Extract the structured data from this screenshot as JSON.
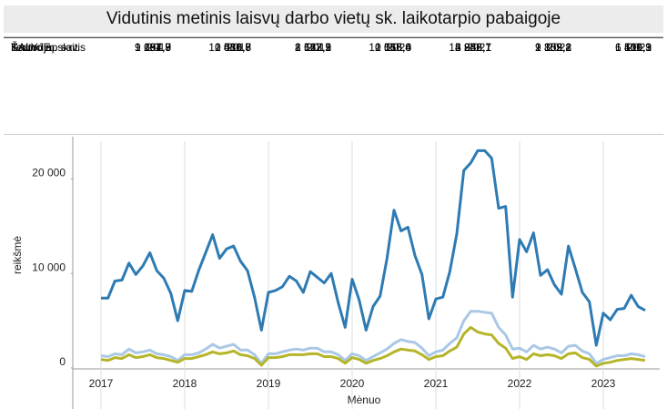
{
  "header": {
    "title": "Vidutinis metinis laisvų darbo vietų sk. laikotarpio pabaigoje"
  },
  "table": {
    "header": [
      "Teritorija",
      "2017",
      "2018",
      "2019",
      "2020",
      "2021",
      "2022",
      "2023"
    ],
    "rows": [
      [
        "ŠALYJE",
        "9 264,8",
        "10 430,6",
        "8 527,5",
        "10 015,4",
        "15 952,1",
        "9 859,2",
        "6 400,3"
      ],
      [
        "Kauno apskritis",
        "1 691,9",
        "2 081,8",
        "2 163,2",
        "2 163,8",
        "4 236,7",
        "2 103,8",
        "1 519,9"
      ],
      [
        "Kauno m. sav.",
        "1 187,9",
        "1 516,7",
        "1 612,1",
        "1 556,4",
        "2 846,1",
        "1 352,1",
        "1 101,1"
      ]
    ]
  },
  "chart_data": {
    "type": "line",
    "x_label": "Mėnuo",
    "y_label": "reikšmė",
    "categories": [
      "2017",
      null,
      null,
      null,
      null,
      null,
      null,
      null,
      null,
      null,
      null,
      null,
      "2018",
      null,
      null,
      null,
      null,
      null,
      null,
      null,
      null,
      null,
      null,
      null,
      "2019",
      null,
      null,
      null,
      null,
      null,
      null,
      null,
      null,
      null,
      null,
      null,
      "2020",
      null,
      null,
      null,
      null,
      null,
      null,
      null,
      null,
      null,
      null,
      null,
      "2021",
      null,
      null,
      null,
      null,
      null,
      null,
      null,
      null,
      null,
      null,
      null,
      "2022",
      null,
      null,
      null,
      null,
      null,
      null,
      null,
      null,
      null,
      null,
      null,
      "2023",
      null,
      null,
      null,
      null,
      null,
      null
    ],
    "ylim": [
      -100,
      24000
    ],
    "yticks": [
      0,
      {
        "value": 10000,
        "label": "10 000"
      },
      {
        "value": 20000,
        "label": "20 000"
      }
    ],
    "grid": "x",
    "series": [
      {
        "color": "#2e7bb4",
        "values": [
          7400,
          7400,
          9200,
          9300,
          11100,
          9900,
          10800,
          12200,
          10300,
          9500,
          7900,
          5000,
          8200,
          8100,
          10300,
          12200,
          14100,
          11600,
          12600,
          12900,
          11300,
          10300,
          7500,
          4000,
          8000,
          8200,
          8600,
          9700,
          9200,
          8000,
          10200,
          9600,
          9000,
          10000,
          6900,
          4300,
          9400,
          7200,
          4000,
          6500,
          7600,
          11600,
          16700,
          14500,
          14900,
          11900,
          9900,
          5200,
          7300,
          7500,
          10200,
          14200,
          20900,
          21700,
          23000,
          23000,
          22200,
          16900,
          17100,
          7500,
          13600,
          12300,
          14300,
          9800,
          10400,
          8800,
          7800,
          12900,
          10500,
          8000,
          7000,
          2400,
          5800,
          5100,
          6200,
          6300,
          7700,
          6500,
          6100
        ]
      },
      {
        "color": "#aac8e6",
        "values": [
          1300,
          1200,
          1500,
          1400,
          2000,
          1600,
          1700,
          1900,
          1500,
          1400,
          1200,
          800,
          1400,
          1400,
          1600,
          2000,
          2500,
          2100,
          2300,
          2500,
          1900,
          1900,
          1400,
          500,
          1500,
          1500,
          1700,
          1900,
          2000,
          1900,
          2100,
          2100,
          1700,
          1700,
          1400,
          800,
          1500,
          1300,
          800,
          1200,
          1600,
          2000,
          2600,
          3000,
          2800,
          2700,
          2100,
          1300,
          1700,
          1900,
          2600,
          3200,
          5000,
          6000,
          6000,
          5900,
          5800,
          4300,
          3500,
          2000,
          2100,
          1700,
          2400,
          2000,
          2200,
          2000,
          1600,
          2300,
          2400,
          1800,
          1500,
          500,
          900,
          1100,
          1300,
          1300,
          1500,
          1400,
          1200
        ]
      },
      {
        "color": "#b5b52a",
        "values": [
          900,
          800,
          1100,
          1000,
          1400,
          1100,
          1200,
          1400,
          1100,
          1000,
          800,
          600,
          1000,
          1000,
          1200,
          1400,
          1700,
          1500,
          1600,
          1800,
          1400,
          1300,
          1000,
          300,
          1100,
          1100,
          1200,
          1400,
          1400,
          1400,
          1500,
          1500,
          1200,
          1200,
          1000,
          500,
          1100,
          900,
          500,
          800,
          1000,
          1300,
          1700,
          2000,
          1900,
          1800,
          1400,
          900,
          1200,
          1300,
          1800,
          2200,
          3600,
          4300,
          3800,
          3600,
          3500,
          2600,
          2100,
          1000,
          1200,
          900,
          1500,
          1300,
          1400,
          1300,
          1000,
          1500,
          1600,
          1100,
          900,
          200,
          500,
          600,
          800,
          900,
          1000,
          900,
          800
        ]
      }
    ]
  }
}
